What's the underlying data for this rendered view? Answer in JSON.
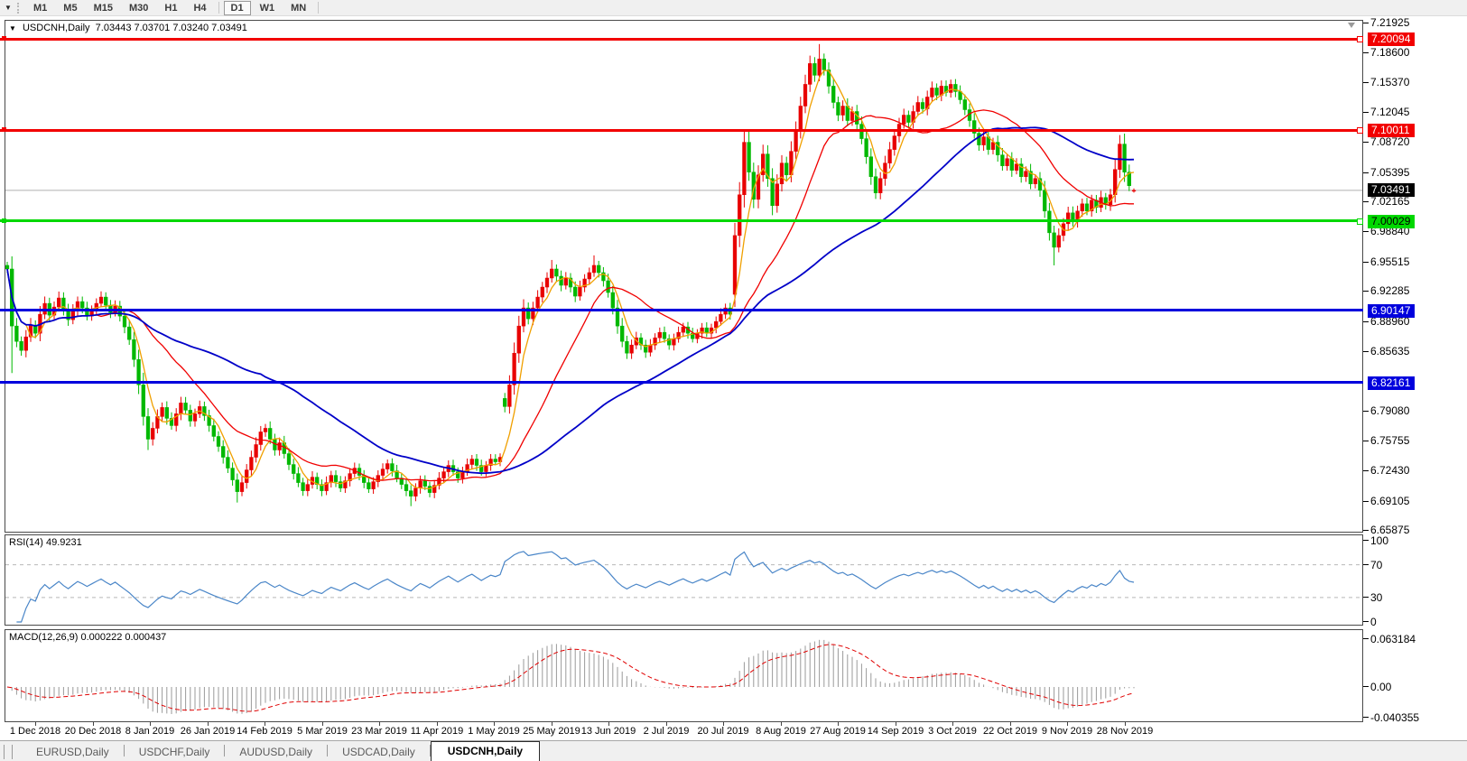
{
  "toolbar": {
    "dropdown_icon": "chart-list-dropdown",
    "timeframes": [
      "M1",
      "M5",
      "M15",
      "M30",
      "H1",
      "H4",
      "D1",
      "W1",
      "MN"
    ],
    "active_timeframe": "D1",
    "separators_after": [
      "H4",
      "MN"
    ]
  },
  "header": {
    "symbol_period": "USDCNH,Daily",
    "open": "7.03443",
    "high": "7.03701",
    "low": "7.03240",
    "close": "7.03491"
  },
  "price_axis": {
    "labels": [
      "7.21925",
      "7.18600",
      "7.15370",
      "7.12045",
      "7.08720",
      "7.05395",
      "7.02165",
      "6.98840",
      "6.95515",
      "6.92285",
      "6.88960",
      "6.85635",
      "6.79080",
      "6.75755",
      "6.72430",
      "6.69105",
      "6.65875"
    ]
  },
  "levels": [
    {
      "label": "7.20094",
      "price": 7.20094,
      "color": "#f20000",
      "text_color": "#ffffff",
      "thickness": 3,
      "handles": true
    },
    {
      "label": "7.10011",
      "price": 7.10011,
      "color": "#f20000",
      "text_color": "#ffffff",
      "thickness": 3,
      "handles": true
    },
    {
      "label": "7.00029",
      "price": 7.00029,
      "color": "#00d800",
      "text_color": "#000000",
      "thickness": 3,
      "handles": true
    },
    {
      "label": "6.90147",
      "price": 6.90147,
      "color": "#0000dd",
      "text_color": "#ffffff",
      "thickness": 3,
      "handles": false
    },
    {
      "label": "6.82161",
      "price": 6.82161,
      "color": "#0000dd",
      "text_color": "#ffffff",
      "thickness": 3,
      "handles": false
    }
  ],
  "current_price": {
    "label": "7.03491",
    "value": 7.03491,
    "line_color": "#b0b0b0",
    "badge_bg": "#000000",
    "badge_text": "#ffffff"
  },
  "rsi_panel": {
    "title": "RSI(14)",
    "value": "49.9231",
    "axis_labels": [
      {
        "v": 100,
        "t": "100"
      },
      {
        "v": 70,
        "t": "70"
      },
      {
        "v": 30,
        "t": "30"
      },
      {
        "v": 0,
        "t": "0"
      }
    ],
    "dashed_levels": [
      70,
      30
    ],
    "line_color": "#4a86c8"
  },
  "macd_panel": {
    "title": "MACD(12,26,9)",
    "values": "0.000222 0.000437",
    "axis_labels": [
      {
        "v": 0.063184,
        "t": "0.063184"
      },
      {
        "v": 0,
        "t": "0.00"
      },
      {
        "v": -0.040355,
        "t": "-0.040355"
      }
    ],
    "hist_color": "#9a9a9a",
    "signal_color": "#e00000"
  },
  "tabs": {
    "items": [
      "EURUSD,Daily",
      "USDCHF,Daily",
      "AUDUSD,Daily",
      "USDCAD,Daily",
      "USDCNH,Daily"
    ],
    "active": "USDCNH,Daily"
  },
  "chart_data": {
    "type": "candlestick",
    "title": "USDCNH,Daily",
    "up_color": "#e80000",
    "down_color": "#00b800",
    "axis_top_price": 7.21925,
    "axis_bottom_price": 6.65875,
    "ylim": [
      6.65875,
      7.21925
    ],
    "x_dates": [
      "1 Dec 2018",
      "20 Dec 2018",
      "8 Jan 2019",
      "26 Jan 2019",
      "14 Feb 2019",
      "5 Mar 2019",
      "23 Mar 2019",
      "11 Apr 2019",
      "1 May 2019",
      "25 May 2019",
      "13 Jun 2019",
      "2 Jul 2019",
      "20 Jul 2019",
      "8 Aug 2019",
      "27 Aug 2019",
      "14 Sep 2019",
      "3 Oct 2019",
      "22 Oct 2019",
      "9 Nov 2019",
      "28 Nov 2019"
    ],
    "closes": [
      6.948,
      6.885,
      6.868,
      6.858,
      6.873,
      6.886,
      6.877,
      6.898,
      6.91,
      6.897,
      6.906,
      6.916,
      6.903,
      6.892,
      6.902,
      6.912,
      6.905,
      6.896,
      6.903,
      6.91,
      6.917,
      6.908,
      6.9,
      6.907,
      6.896,
      6.884,
      6.87,
      6.848,
      6.82,
      6.785,
      6.76,
      6.772,
      6.785,
      6.795,
      6.783,
      6.775,
      6.788,
      6.8,
      6.792,
      6.78,
      6.788,
      6.796,
      6.786,
      6.775,
      6.763,
      6.752,
      6.74,
      6.728,
      6.715,
      6.702,
      6.712,
      6.726,
      6.74,
      6.754,
      6.768,
      6.772,
      6.76,
      6.748,
      6.756,
      6.744,
      6.732,
      6.722,
      6.712,
      6.703,
      6.71,
      6.718,
      6.71,
      6.703,
      6.712,
      6.72,
      6.713,
      6.706,
      6.714,
      6.722,
      6.728,
      6.72,
      6.712,
      6.705,
      6.713,
      6.72,
      6.727,
      6.733,
      6.725,
      6.717,
      6.71,
      6.703,
      6.697,
      6.706,
      6.714,
      6.708,
      6.701,
      6.709,
      6.717,
      6.724,
      6.731,
      6.724,
      6.717,
      6.724,
      6.732,
      6.738,
      6.731,
      6.724,
      6.731,
      6.738,
      6.735,
      6.74,
      6.796,
      6.82,
      6.855,
      6.885,
      6.905,
      6.893,
      6.905,
      6.917,
      6.928,
      6.938,
      6.948,
      6.94,
      6.93,
      6.938,
      6.928,
      6.918,
      6.928,
      6.937,
      6.944,
      6.952,
      6.944,
      6.935,
      6.922,
      6.905,
      6.885,
      6.868,
      6.855,
      6.864,
      6.872,
      6.864,
      6.856,
      6.864,
      6.872,
      6.878,
      6.871,
      6.864,
      6.871,
      6.878,
      6.884,
      6.877,
      6.871,
      6.877,
      6.883,
      6.877,
      6.883,
      6.89,
      6.898,
      6.905,
      6.898,
      6.985,
      7.03,
      7.088,
      7.055,
      7.025,
      7.052,
      7.075,
      7.048,
      7.018,
      7.042,
      7.065,
      7.052,
      7.078,
      7.102,
      7.128,
      7.152,
      7.175,
      7.162,
      7.18,
      7.168,
      7.15,
      7.132,
      7.118,
      7.128,
      7.112,
      7.122,
      7.108,
      7.092,
      7.072,
      7.05,
      7.032,
      7.048,
      7.065,
      7.08,
      7.095,
      7.108,
      7.118,
      7.11,
      7.122,
      7.132,
      7.125,
      7.138,
      7.148,
      7.14,
      7.15,
      7.143,
      7.152,
      7.144,
      7.135,
      7.124,
      7.112,
      7.098,
      7.085,
      7.094,
      7.08,
      7.088,
      7.074,
      7.062,
      7.07,
      7.057,
      7.064,
      7.05,
      7.056,
      7.042,
      7.048,
      7.035,
      7.012,
      6.988,
      6.972,
      6.985,
      6.998,
      7.01,
      7.0,
      7.012,
      7.02,
      7.012,
      7.024,
      7.016,
      7.027,
      7.019,
      7.03,
      7.058,
      7.086,
      7.055,
      7.04,
      7.0349
    ],
    "open_overrides": {
      "106": 6.805,
      "155": 6.92,
      "240": 7.03443
    },
    "high_overrides": {
      "116": 6.958,
      "125": 6.963,
      "173": 7.1965,
      "237": 7.096,
      "240": 7.03701
    },
    "low_overrides": {
      "1": 6.833,
      "30": 6.748,
      "49": 6.69,
      "86": 6.686,
      "223": 6.952,
      "240": 7.0324
    },
    "moving_averages": [
      {
        "name": "ma-fast",
        "period": 5,
        "color": "#f0a000",
        "width": 1.3
      },
      {
        "name": "ma-medium",
        "period": 20,
        "color": "#f00000",
        "width": 1.3
      },
      {
        "name": "ma-slow",
        "period": 55,
        "color": "#0000c8",
        "width": 1.8
      }
    ],
    "rsi_period": 14,
    "macd": {
      "fast": 12,
      "slow": 26,
      "signal": 9,
      "scale_max": 0.063184,
      "scale_min": -0.040355
    },
    "bar_start_x": 7,
    "bar_step": 5.2
  }
}
